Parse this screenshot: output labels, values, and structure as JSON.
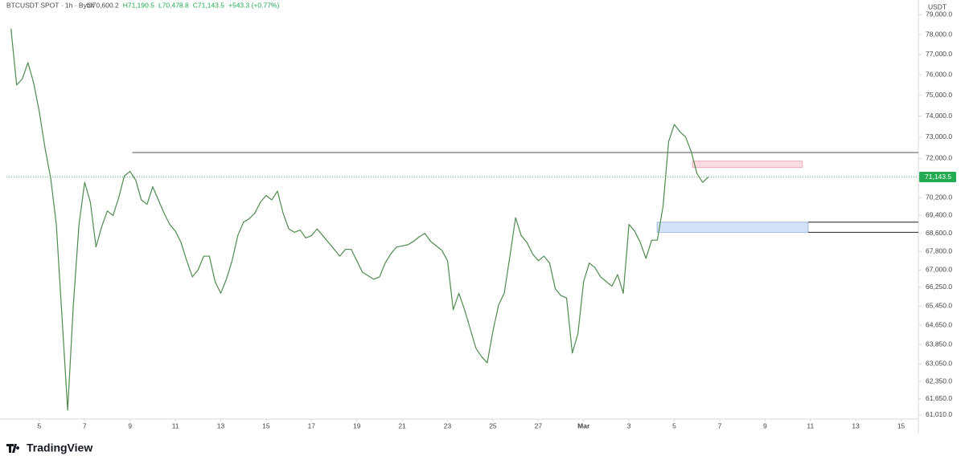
{
  "chart_data": {
    "type": "line",
    "title": "BTCUSDT SPOT · 1h · Bybit",
    "stats": [
      {
        "value": 70600.2,
        "label": "O70,600.2"
      },
      {
        "value": 71190.5,
        "label": "H71,190.5"
      },
      {
        "value": 70478.8,
        "label": "L70,478.8"
      },
      {
        "value": 71143.5,
        "label": "C71,143.5"
      },
      {
        "value": 543.3,
        "label": "+543.3 (+0.77%)"
      }
    ],
    "currency": "USDT",
    "brand": "TradingView",
    "yscale": "log",
    "grid": false,
    "x": [
      3.75,
      4,
      4.25,
      4.5,
      4.75,
      5,
      5.25,
      5.5,
      5.75,
      6,
      6.25,
      6.5,
      6.75,
      7,
      7.25,
      7.5,
      7.75,
      8,
      8.25,
      8.5,
      8.75,
      9,
      9.25,
      9.5,
      9.75,
      10,
      10.25,
      10.5,
      10.75,
      11,
      11.25,
      11.5,
      11.75,
      12,
      12.25,
      12.5,
      12.75,
      13,
      13.25,
      13.5,
      13.75,
      14,
      14.25,
      14.5,
      14.75,
      15,
      15.25,
      15.5,
      15.75,
      16,
      16.25,
      16.5,
      16.75,
      17,
      17.25,
      17.5,
      17.75,
      18,
      18.25,
      18.5,
      18.75,
      19,
      19.25,
      19.5,
      19.75,
      20,
      20.25,
      20.5,
      20.75,
      21,
      21.25,
      21.5,
      21.75,
      22,
      22.25,
      22.5,
      22.75,
      23,
      23.25,
      23.5,
      23.75,
      24,
      24.25,
      24.5,
      24.75,
      25,
      25.25,
      25.5,
      25.75,
      26,
      26.25,
      26.5,
      26.75,
      27,
      27.25,
      27.5,
      27.75,
      28,
      28.25,
      28.5,
      28.75,
      29,
      29.25,
      29.5,
      29.75,
      30,
      30.25,
      30.5,
      30.75,
      31,
      31.25,
      31.5,
      31.75,
      32,
      32.25,
      32.5,
      32.75,
      33,
      33.25,
      33.5,
      33.75,
      34,
      34.25,
      34.5
    ],
    "series": [
      {
        "name": "BTCUSDT",
        "color": "#4f8a4f",
        "values": [
          78300,
          75500,
          75800,
          76600,
          75600,
          74200,
          72500,
          71100,
          69000,
          65000,
          61200,
          65500,
          69000,
          70900,
          70000,
          68000,
          68900,
          69600,
          69400,
          70200,
          71200,
          71400,
          71000,
          70100,
          69900,
          70700,
          70100,
          69500,
          69000,
          68700,
          68200,
          67400,
          66700,
          67000,
          67600,
          67600,
          66500,
          66000,
          66600,
          67400,
          68500,
          69100,
          69250,
          69500,
          70000,
          70300,
          70100,
          70500,
          69500,
          68800,
          68650,
          68750,
          68400,
          68500,
          68800,
          68500,
          68200,
          67900,
          67600,
          67900,
          67900,
          67400,
          66900,
          66750,
          66600,
          66700,
          67300,
          67700,
          68000,
          68050,
          68100,
          68250,
          68450,
          68600,
          68250,
          68050,
          67850,
          67400,
          65300,
          66000,
          65300,
          64500,
          63700,
          63350,
          63100,
          64400,
          65500,
          66000,
          67600,
          69300,
          68500,
          68200,
          67700,
          67400,
          67600,
          67300,
          66200,
          65900,
          65800,
          63500,
          64300,
          66500,
          67300,
          67100,
          66700,
          66500,
          66300,
          66800,
          66000,
          69000,
          68700,
          68200,
          67500,
          68300,
          68300,
          69800,
          72800,
          73600,
          73250,
          73000,
          72300,
          71300,
          70900,
          71143.5
        ]
      }
    ],
    "last_price": {
      "value": 71143.5,
      "label": "71,143.5",
      "color": "#22ab50"
    },
    "levels": [
      {
        "value": 72280,
        "from": 9.1,
        "color": "#555555"
      },
      {
        "value": 69100,
        "from": 38.9,
        "color": "#222222"
      },
      {
        "value": 68650,
        "from": 38.9,
        "color": "#222222"
      }
    ],
    "zones": [
      {
        "low": 71580,
        "high": 71880,
        "from": 33.8,
        "to": 38.65,
        "color": "#f9dbe1",
        "border": "#e8a0ad"
      },
      {
        "low": 68650,
        "high": 69100,
        "from": 32.24,
        "to": 38.9,
        "color": "#d3e2f6",
        "border": "#8fb0dc"
      }
    ],
    "xlim": [
      3.55,
      43.76
    ],
    "xticks": [
      5,
      7,
      9,
      11,
      13,
      15,
      17,
      19,
      21,
      23,
      25,
      27,
      {
        "value": 29,
        "label": "Mar"
      },
      {
        "value": 31,
        "label": "3"
      },
      {
        "value": 33,
        "label": "5"
      },
      {
        "value": 35,
        "label": "7"
      },
      {
        "value": 37,
        "label": "9"
      },
      {
        "value": 39,
        "label": "11"
      },
      {
        "value": 41,
        "label": "13"
      },
      {
        "value": 43,
        "label": "15"
      }
    ],
    "ylim": [
      60850,
      79430
    ],
    "yticks": [
      {
        "value": 79000,
        "label": "79,000.0"
      },
      {
        "value": 78000,
        "label": "78,000.0"
      },
      {
        "value": 77000,
        "label": "77,000.0"
      },
      {
        "value": 76000,
        "label": "76,000.0"
      },
      {
        "value": 75000,
        "label": "75,000.0"
      },
      {
        "value": 74000,
        "label": "74,000.0"
      },
      {
        "value": 73000,
        "label": "73,000.0"
      },
      {
        "value": 72000,
        "label": "72,000.0"
      },
      {
        "value": 70200,
        "label": "70,200.0"
      },
      {
        "value": 69400,
        "label": "69,400.0"
      },
      {
        "value": 68600,
        "label": "68,600.0"
      },
      {
        "value": 67800,
        "label": "67,800.0"
      },
      {
        "value": 67000,
        "label": "67,000.0"
      },
      {
        "value": 66250,
        "label": "66,250.0"
      },
      {
        "value": 65450,
        "label": "65,450.0"
      },
      {
        "value": 64650,
        "label": "64,650.0"
      },
      {
        "value": 63850,
        "label": "63,850.0"
      },
      {
        "value": 63050,
        "label": "63,050.0"
      },
      {
        "value": 62350,
        "label": "62,350.0"
      },
      {
        "value": 61650,
        "label": "61,650.0"
      },
      {
        "value": 61010,
        "label": "61,010.0"
      }
    ]
  }
}
